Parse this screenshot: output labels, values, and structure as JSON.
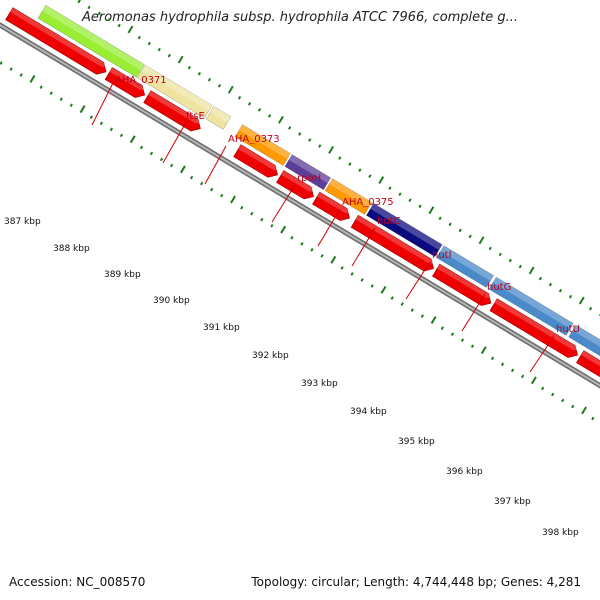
{
  "header": {
    "title": "Aeromonas hydrophila subsp. hydrophila ATCC 7966, complete g..."
  },
  "footer": {
    "accession": "Accession: NC_008570",
    "topology": "Topology: circular; Length: 4,744,448 bp; Genes: 4,281"
  },
  "map": {
    "colors": {
      "backbone": "#7d7d7d",
      "tick": "#1e7a1e",
      "cds": "#ee0000",
      "label": "#c0001b",
      "label_line": "#cc0000"
    },
    "ticks": [
      {
        "label": "387 kbp"
      },
      {
        "label": "388 kbp"
      },
      {
        "label": "389 kbp"
      },
      {
        "label": "390 kbp"
      },
      {
        "label": "391 kbp"
      },
      {
        "label": "392 kbp"
      },
      {
        "label": "393 kbp"
      },
      {
        "label": "394 kbp"
      },
      {
        "label": "395 kbp"
      },
      {
        "label": "396 kbp"
      },
      {
        "label": "397 kbp"
      },
      {
        "label": "398 kbp"
      }
    ],
    "features": [
      {
        "name": "",
        "color": "#1a1aff"
      },
      {
        "name": "AHA_0371",
        "color": "#99ee33"
      },
      {
        "name": "ftsE",
        "color": "#eee4a0"
      },
      {
        "name": "AHA_0373",
        "color": "#eee4a0"
      },
      {
        "name": "rpoH",
        "color": "#ff9900"
      },
      {
        "name": "AHA_0375",
        "color": "#5c3d99"
      },
      {
        "name": "hutC",
        "color": "#ff9900"
      },
      {
        "name": "hutI",
        "color": "#0b0b80"
      },
      {
        "name": "hutG",
        "color": "#4a8ac8"
      },
      {
        "name": "hutU",
        "color": "#4a8ac8"
      },
      {
        "name": "",
        "color": "#4a8ac8"
      }
    ]
  }
}
